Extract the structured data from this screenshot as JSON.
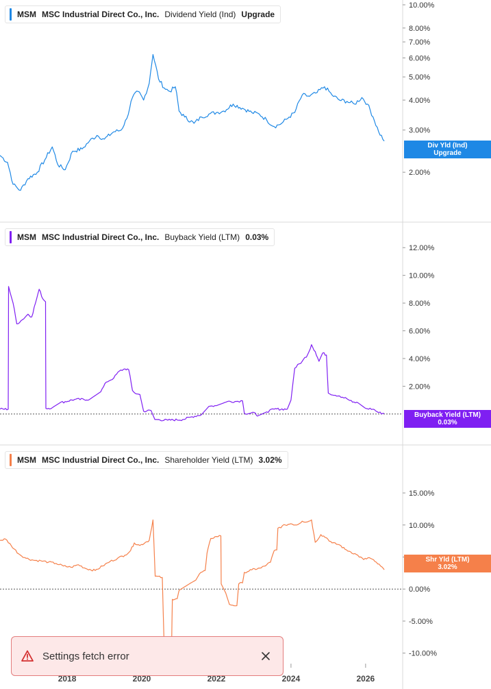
{
  "toast": {
    "message": "Settings fetch error"
  },
  "x_axis": {
    "ticks": [
      {
        "year": 2018,
        "label": "2018"
      },
      {
        "year": 2020,
        "label": "2020"
      },
      {
        "year": 2022,
        "label": "2022"
      },
      {
        "year": 2024,
        "label": "2024"
      },
      {
        "year": 2026,
        "label": "2026"
      }
    ],
    "range": [
      2016.2,
      2026.7
    ]
  },
  "colors": {
    "dividend": "#1e88e5",
    "buyback": "#7f1ff2",
    "shareholder": "#f5804a",
    "gridline": "#d9d9d9",
    "zeroline": "#555555"
  },
  "chart_data": [
    {
      "type": "line",
      "ticker": "MSM",
      "company": "MSC Industrial Direct Co., Inc.",
      "metric": "Dividend Yield (Ind)",
      "legend_value": "Upgrade",
      "tag": [
        "Div Yld (Ind)",
        "Upgrade"
      ],
      "scale": "log",
      "ylim": [
        1.45,
        10.0
      ],
      "y_ticks": [
        {
          "v": 10,
          "label": "10.00%"
        },
        {
          "v": 8,
          "label": "8.00%"
        },
        {
          "v": 7,
          "label": "7.00%"
        },
        {
          "v": 6,
          "label": "6.00%"
        },
        {
          "v": 5,
          "label": "5.00%"
        },
        {
          "v": 4,
          "label": "4.00%"
        },
        {
          "v": 3,
          "label": "3.00%"
        },
        {
          "v": 2,
          "label": "2.00%"
        }
      ],
      "series": [
        {
          "name": "Dividend Yield (Ind)",
          "noise": 0.02,
          "points": [
            [
              2016.2,
              2.35
            ],
            [
              2016.4,
              2.2
            ],
            [
              2016.55,
              1.78
            ],
            [
              2016.75,
              1.68
            ],
            [
              2016.95,
              1.88
            ],
            [
              2017.2,
              2.0
            ],
            [
              2017.4,
              2.25
            ],
            [
              2017.6,
              2.55
            ],
            [
              2017.75,
              2.15
            ],
            [
              2017.95,
              2.05
            ],
            [
              2018.15,
              2.45
            ],
            [
              2018.4,
              2.5
            ],
            [
              2018.6,
              2.7
            ],
            [
              2018.8,
              2.85
            ],
            [
              2019.0,
              2.75
            ],
            [
              2019.25,
              2.95
            ],
            [
              2019.45,
              3.0
            ],
            [
              2019.6,
              3.35
            ],
            [
              2019.75,
              4.1
            ],
            [
              2019.9,
              4.35
            ],
            [
              2020.05,
              4.0
            ],
            [
              2020.2,
              4.7
            ],
            [
              2020.3,
              6.2
            ],
            [
              2020.45,
              4.9
            ],
            [
              2020.6,
              4.5
            ],
            [
              2020.75,
              4.35
            ],
            [
              2020.9,
              4.55
            ],
            [
              2021.0,
              3.6
            ],
            [
              2021.15,
              3.4
            ],
            [
              2021.4,
              3.2
            ],
            [
              2021.6,
              3.4
            ],
            [
              2021.8,
              3.5
            ],
            [
              2022.0,
              3.55
            ],
            [
              2022.2,
              3.6
            ],
            [
              2022.45,
              3.85
            ],
            [
              2022.7,
              3.7
            ],
            [
              2022.95,
              3.55
            ],
            [
              2023.15,
              3.5
            ],
            [
              2023.35,
              3.3
            ],
            [
              2023.55,
              3.1
            ],
            [
              2023.75,
              3.2
            ],
            [
              2023.95,
              3.4
            ],
            [
              2024.1,
              3.55
            ],
            [
              2024.3,
              4.2
            ],
            [
              2024.5,
              4.15
            ],
            [
              2024.7,
              4.3
            ],
            [
              2024.9,
              4.55
            ],
            [
              2025.1,
              4.2
            ],
            [
              2025.3,
              4.0
            ],
            [
              2025.5,
              3.95
            ],
            [
              2025.7,
              3.85
            ],
            [
              2025.9,
              4.1
            ],
            [
              2026.05,
              3.85
            ],
            [
              2026.2,
              3.4
            ],
            [
              2026.35,
              2.95
            ],
            [
              2026.5,
              2.7
            ]
          ]
        }
      ]
    },
    {
      "type": "line",
      "ticker": "MSM",
      "company": "MSC Industrial Direct Co., Inc.",
      "metric": "Buyback Yield (LTM)",
      "legend_value": "0.03%",
      "tag": [
        "Buyback Yield (LTM)",
        "0.03%"
      ],
      "scale": "linear",
      "ylim": [
        -0.8,
        13.0
      ],
      "zero_line": 0,
      "y_ticks": [
        {
          "v": 12,
          "label": "12.00%"
        },
        {
          "v": 10,
          "label": "10.00%"
        },
        {
          "v": 8,
          "label": "8.00%"
        },
        {
          "v": 6,
          "label": "6.00%"
        },
        {
          "v": 4,
          "label": "4.00%"
        },
        {
          "v": 2,
          "label": "2.00%"
        }
      ],
      "series": [
        {
          "name": "Buyback Yield (LTM)",
          "noise": 0.04,
          "points": [
            [
              2016.2,
              0.35
            ],
            [
              2016.42,
              0.35
            ],
            [
              2016.43,
              9.2
            ],
            [
              2016.55,
              8.0
            ],
            [
              2016.65,
              6.5
            ],
            [
              2016.8,
              6.8
            ],
            [
              2016.95,
              7.2
            ],
            [
              2017.05,
              7.0
            ],
            [
              2017.15,
              8.0
            ],
            [
              2017.25,
              9.0
            ],
            [
              2017.35,
              8.3
            ],
            [
              2017.42,
              8.1
            ],
            [
              2017.43,
              0.4
            ],
            [
              2017.6,
              0.45
            ],
            [
              2017.8,
              0.8
            ],
            [
              2018.2,
              1.05
            ],
            [
              2018.6,
              1.05
            ],
            [
              2018.9,
              1.6
            ],
            [
              2019.05,
              2.3
            ],
            [
              2019.25,
              2.6
            ],
            [
              2019.4,
              3.1
            ],
            [
              2019.55,
              3.25
            ],
            [
              2019.65,
              3.2
            ],
            [
              2019.75,
              1.7
            ],
            [
              2019.85,
              1.45
            ],
            [
              2019.95,
              1.4
            ],
            [
              2020.05,
              0.2
            ],
            [
              2020.25,
              0.25
            ],
            [
              2020.35,
              -0.4
            ],
            [
              2020.7,
              -0.45
            ],
            [
              2021.1,
              -0.4
            ],
            [
              2021.35,
              -0.2
            ],
            [
              2021.6,
              -0.05
            ],
            [
              2021.8,
              0.55
            ],
            [
              2022.0,
              0.6
            ],
            [
              2022.3,
              0.9
            ],
            [
              2022.5,
              0.9
            ],
            [
              2022.7,
              0.95
            ],
            [
              2022.75,
              0.05
            ],
            [
              2023.05,
              0.05
            ],
            [
              2023.1,
              -0.15
            ],
            [
              2023.35,
              0.15
            ],
            [
              2023.55,
              0.35
            ],
            [
              2023.9,
              0.35
            ],
            [
              2024.0,
              1.0
            ],
            [
              2024.1,
              3.3
            ],
            [
              2024.3,
              3.8
            ],
            [
              2024.45,
              4.3
            ],
            [
              2024.55,
              5.0
            ],
            [
              2024.65,
              4.5
            ],
            [
              2024.75,
              3.8
            ],
            [
              2024.85,
              4.4
            ],
            [
              2024.95,
              4.25
            ],
            [
              2025.0,
              1.5
            ],
            [
              2025.3,
              1.3
            ],
            [
              2025.5,
              1.1
            ],
            [
              2025.65,
              0.85
            ],
            [
              2025.8,
              0.8
            ],
            [
              2026.0,
              0.4
            ],
            [
              2026.2,
              0.35
            ],
            [
              2026.35,
              0.1
            ],
            [
              2026.5,
              0.03
            ]
          ]
        }
      ]
    },
    {
      "type": "line",
      "ticker": "MSM",
      "company": "MSC Industrial Direct Co., Inc.",
      "metric": "Shareholder Yield (LTM)",
      "legend_value": "3.02%",
      "tag": [
        "Shr Yld (LTM)",
        "3.02%"
      ],
      "scale": "linear",
      "ylim": [
        -11.0,
        18.0
      ],
      "zero_line": 0,
      "y_ticks": [
        {
          "v": 15,
          "label": "15.00%"
        },
        {
          "v": 10,
          "label": "10.00%"
        },
        {
          "v": 5,
          "label": "5.00%"
        },
        {
          "v": 0,
          "label": "0.00%"
        },
        {
          "v": -5,
          "label": "-5.00%"
        },
        {
          "v": -10,
          "label": "-10.00%"
        }
      ],
      "series": [
        {
          "name": "Shareholder Yield (LTM)",
          "noise": 0.08,
          "points": [
            [
              2016.2,
              7.6
            ],
            [
              2016.35,
              7.8
            ],
            [
              2016.5,
              6.8
            ],
            [
              2016.7,
              5.5
            ],
            [
              2016.9,
              4.8
            ],
            [
              2017.1,
              4.5
            ],
            [
              2017.3,
              4.4
            ],
            [
              2017.5,
              4.2
            ],
            [
              2017.7,
              4.0
            ],
            [
              2017.9,
              3.6
            ],
            [
              2018.1,
              3.4
            ],
            [
              2018.3,
              3.8
            ],
            [
              2018.5,
              3.2
            ],
            [
              2018.75,
              2.9
            ],
            [
              2018.95,
              3.6
            ],
            [
              2019.15,
              4.3
            ],
            [
              2019.35,
              4.8
            ],
            [
              2019.55,
              5.3
            ],
            [
              2019.7,
              6.0
            ],
            [
              2019.8,
              7.2
            ],
            [
              2019.95,
              6.8
            ],
            [
              2020.1,
              7.3
            ],
            [
              2020.2,
              7.6
            ],
            [
              2020.3,
              10.8
            ],
            [
              2020.33,
              6.5
            ],
            [
              2020.36,
              2.0
            ],
            [
              2020.55,
              1.8
            ],
            [
              2020.6,
              -8.8
            ],
            [
              2020.8,
              -8.9
            ],
            [
              2020.82,
              -1.6
            ],
            [
              2020.95,
              -1.5
            ],
            [
              2021.0,
              -0.2
            ],
            [
              2021.3,
              0.9
            ],
            [
              2021.45,
              1.4
            ],
            [
              2021.55,
              2.4
            ],
            [
              2021.7,
              2.9
            ],
            [
              2021.75,
              5.6
            ],
            [
              2021.85,
              7.9
            ],
            [
              2022.0,
              8.2
            ],
            [
              2022.12,
              8.3
            ],
            [
              2022.13,
              0.8
            ],
            [
              2022.25,
              -0.6
            ],
            [
              2022.35,
              -2.4
            ],
            [
              2022.55,
              -2.6
            ],
            [
              2022.6,
              0.8
            ],
            [
              2022.7,
              0.95
            ],
            [
              2022.75,
              2.6
            ],
            [
              2022.95,
              3.0
            ],
            [
              2023.2,
              3.3
            ],
            [
              2023.35,
              3.8
            ],
            [
              2023.45,
              4.2
            ],
            [
              2023.55,
              6.0
            ],
            [
              2023.62,
              6.1
            ],
            [
              2023.65,
              9.5
            ],
            [
              2023.85,
              10.0
            ],
            [
              2024.0,
              10.2
            ],
            [
              2024.15,
              10.0
            ],
            [
              2024.3,
              10.6
            ],
            [
              2024.45,
              10.5
            ],
            [
              2024.55,
              10.8
            ],
            [
              2024.65,
              7.3
            ],
            [
              2024.8,
              8.5
            ],
            [
              2024.95,
              8.0
            ],
            [
              2025.1,
              7.2
            ],
            [
              2025.3,
              6.9
            ],
            [
              2025.45,
              6.2
            ],
            [
              2025.6,
              5.8
            ],
            [
              2025.75,
              5.4
            ],
            [
              2025.95,
              4.6
            ],
            [
              2026.1,
              4.9
            ],
            [
              2026.25,
              4.3
            ],
            [
              2026.4,
              3.6
            ],
            [
              2026.5,
              3.02
            ]
          ]
        }
      ]
    }
  ]
}
